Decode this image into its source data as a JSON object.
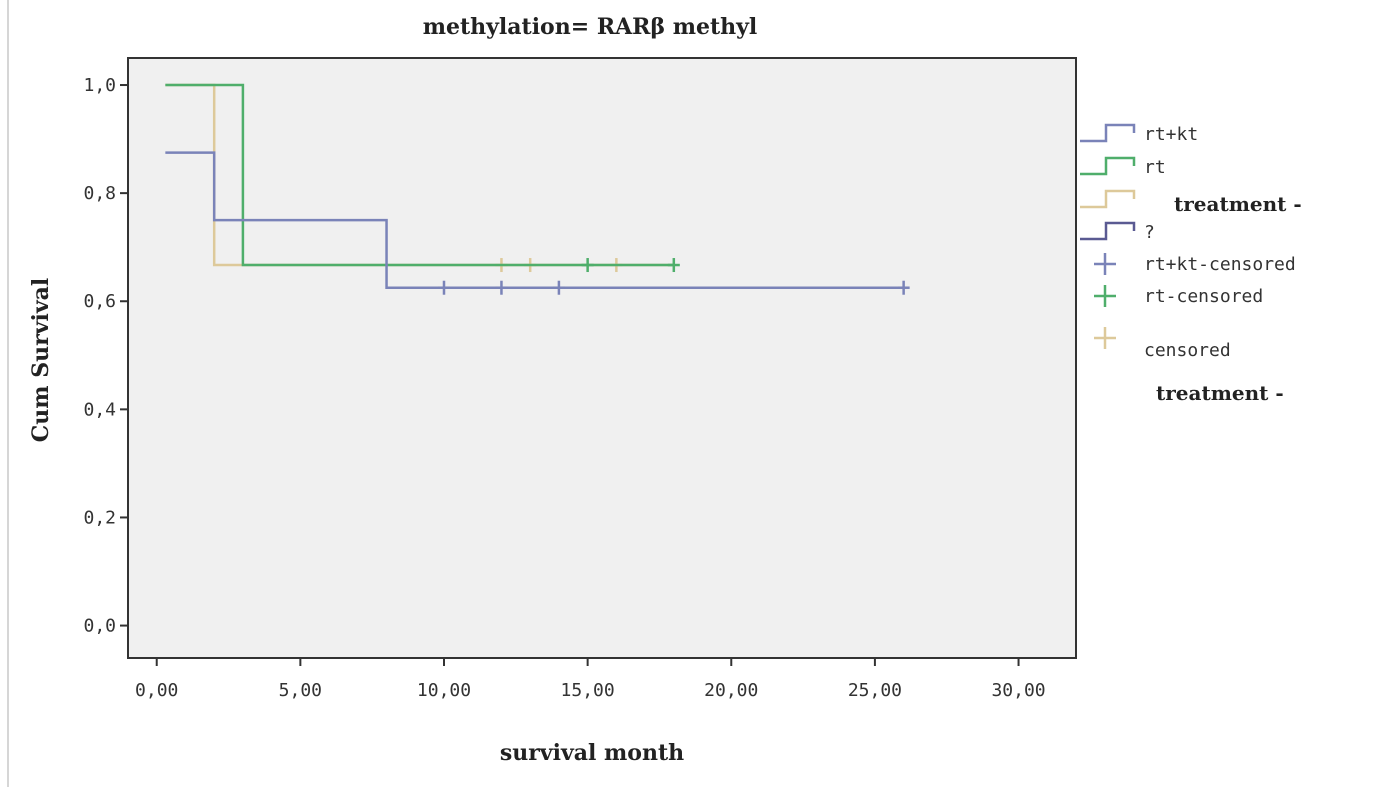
{
  "chart_data": {
    "type": "line",
    "subtype": "kaplan-meier step",
    "title": "methylation= RARβ methyl",
    "xlabel": "survival month",
    "ylabel": "Cum Survival",
    "xlim": [
      -1,
      32
    ],
    "ylim": [
      -0.06,
      1.05
    ],
    "x_ticks": [
      0,
      5,
      10,
      15,
      20,
      25,
      30
    ],
    "x_tick_labels": [
      "0,00",
      "5,00",
      "10,00",
      "15,00",
      "20,00",
      "25,00",
      "30,00"
    ],
    "y_ticks": [
      0,
      0.2,
      0.4,
      0.6,
      0.8,
      1.0
    ],
    "y_tick_labels": [
      "0,0",
      "0,2",
      "0,4",
      "0,6",
      "0,8",
      "1,0"
    ],
    "grid": false,
    "legend_position": "right",
    "series": [
      {
        "name": "rt+kt",
        "color": "#7a83b8",
        "steps": [
          [
            0.3,
            0.875
          ],
          [
            2,
            0.875
          ],
          [
            2,
            0.75
          ],
          [
            8,
            0.75
          ],
          [
            8,
            0.625
          ],
          [
            26,
            0.625
          ]
        ],
        "censored": [
          [
            10,
            0.625
          ],
          [
            12,
            0.625
          ],
          [
            14,
            0.625
          ],
          [
            26,
            0.625
          ]
        ]
      },
      {
        "name": "rt",
        "color": "#4fae6b",
        "steps": [
          [
            0.3,
            1.0
          ],
          [
            3,
            1.0
          ],
          [
            3,
            0.667
          ],
          [
            18,
            0.667
          ]
        ],
        "censored": [
          [
            15,
            0.667
          ],
          [
            18,
            0.667
          ]
        ]
      },
      {
        "name": "",
        "color": "#ddc99a",
        "steps": [
          [
            0.3,
            1.0
          ],
          [
            2,
            1.0
          ],
          [
            2,
            0.667
          ],
          [
            18,
            0.667
          ]
        ],
        "censored": [
          [
            12,
            0.667
          ],
          [
            13,
            0.667
          ],
          [
            16,
            0.667
          ]
        ]
      }
    ],
    "legend": [
      {
        "label": "rt+kt",
        "kind": "line",
        "color": "#7a83b8"
      },
      {
        "label": "rt",
        "kind": "line",
        "color": "#4fae6b"
      },
      {
        "label": "",
        "kind": "line",
        "color": "#ddc99a"
      },
      {
        "label": "?",
        "kind": "line",
        "color": "#5a5a92"
      },
      {
        "label": "rt+kt-censored",
        "kind": "cross",
        "color": "#7a83b8"
      },
      {
        "label": "rt-censored",
        "kind": "cross",
        "color": "#4fae6b"
      },
      {
        "label": "censored",
        "kind": "cross",
        "color": "#ddc99a"
      }
    ],
    "legend_titles": [
      "treatment -",
      "treatment -"
    ]
  }
}
